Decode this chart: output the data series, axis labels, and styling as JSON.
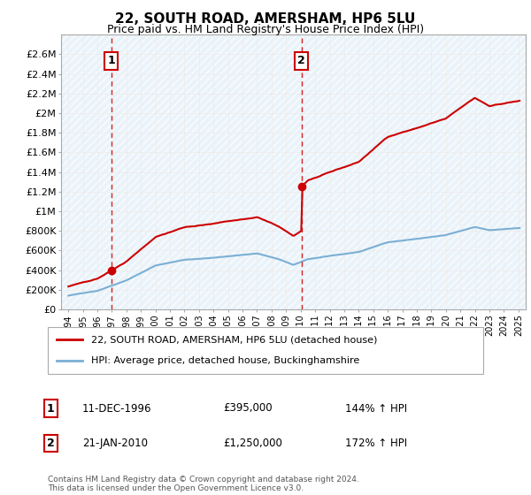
{
  "title": "22, SOUTH ROAD, AMERSHAM, HP6 5LU",
  "subtitle": "Price paid vs. HM Land Registry's House Price Index (HPI)",
  "legend_line1": "22, SOUTH ROAD, AMERSHAM, HP6 5LU (detached house)",
  "legend_line2": "HPI: Average price, detached house, Buckinghamshire",
  "footer": "Contains HM Land Registry data © Crown copyright and database right 2024.\nThis data is licensed under the Open Government Licence v3.0.",
  "sale1_label": "1",
  "sale1_date": "11-DEC-1996",
  "sale1_price": "£395,000",
  "sale1_hpi": "144% ↑ HPI",
  "sale2_label": "2",
  "sale2_date": "21-JAN-2010",
  "sale2_price": "£1,250,000",
  "sale2_hpi": "172% ↑ HPI",
  "sale_color": "#cc0000",
  "hpi_color": "#7bafd4",
  "hpi_fill_color": "#d6e8f7",
  "background_color": "#ffffff",
  "grid_color": "#cccccc",
  "ylim": [
    0,
    2800000
  ],
  "yticks": [
    0,
    200000,
    400000,
    600000,
    800000,
    1000000,
    1200000,
    1400000,
    1600000,
    1800000,
    2000000,
    2200000,
    2400000,
    2600000
  ],
  "ytick_labels": [
    "£0",
    "£200K",
    "£400K",
    "£600K",
    "£800K",
    "£1M",
    "£1.2M",
    "£1.4M",
    "£1.6M",
    "£1.8M",
    "£2M",
    "£2.2M",
    "£2.4M",
    "£2.6M"
  ],
  "sale1_x": 1996.95,
  "sale1_y": 395000,
  "sale2_x": 2010.05,
  "sale2_y": 1250000,
  "xmin": 1994,
  "xmax": 2025
}
